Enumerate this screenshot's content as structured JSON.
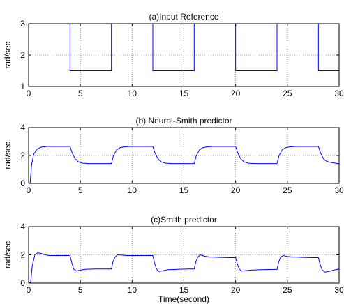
{
  "chart_data": [
    {
      "type": "line",
      "title": "(a)Input Reference",
      "xlabel": "",
      "ylabel": "rad/sec",
      "xlim": [
        0,
        30
      ],
      "ylim": [
        1,
        3
      ],
      "xticks": [
        0,
        5,
        10,
        15,
        20,
        25,
        30
      ],
      "yticks": [
        1,
        2,
        3
      ],
      "grid": true,
      "series": [
        {
          "color": "#0000ff",
          "x": [
            0,
            4,
            4,
            8,
            8,
            12,
            12,
            16,
            16,
            20,
            20,
            24,
            24,
            28,
            28,
            30
          ],
          "y": [
            3,
            3,
            1.5,
            1.5,
            3,
            3,
            1.5,
            1.5,
            3,
            3,
            1.5,
            1.5,
            3,
            3,
            1.5,
            1.5
          ]
        }
      ]
    },
    {
      "type": "line",
      "title": "(b) Neural-Smith predictor",
      "xlabel": "",
      "ylabel": "rad/sec",
      "xlim": [
        0,
        30
      ],
      "ylim": [
        0,
        4
      ],
      "xticks": [
        0,
        5,
        10,
        15,
        20,
        25,
        30
      ],
      "yticks": [
        0,
        2,
        4
      ],
      "grid": true,
      "series": [
        {
          "color": "#0000ff",
          "x": [
            0,
            0.15,
            0.3,
            0.5,
            0.8,
            1.2,
            1.8,
            2.5,
            4.0,
            4.2,
            4.5,
            4.8,
            5.2,
            5.8,
            6.5,
            8.0,
            8.2,
            8.5,
            8.8,
            9.2,
            9.8,
            10.5,
            12.0,
            12.2,
            12.5,
            12.8,
            13.2,
            13.8,
            14.5,
            16.0,
            16.2,
            16.5,
            16.8,
            17.2,
            17.8,
            18.5,
            20.0,
            20.2,
            20.5,
            20.8,
            21.2,
            21.8,
            22.5,
            24.0,
            24.2,
            24.5,
            24.8,
            25.2,
            25.8,
            26.5,
            28.0,
            28.2,
            28.5,
            28.8,
            29.2,
            29.6,
            30.0
          ],
          "y": [
            0,
            0.05,
            1.4,
            2.1,
            2.45,
            2.6,
            2.65,
            2.65,
            2.65,
            2.2,
            1.75,
            1.55,
            1.45,
            1.42,
            1.42,
            1.42,
            2.0,
            2.4,
            2.55,
            2.62,
            2.65,
            2.65,
            2.65,
            2.2,
            1.75,
            1.55,
            1.45,
            1.42,
            1.42,
            1.42,
            2.0,
            2.4,
            2.55,
            2.62,
            2.65,
            2.65,
            2.65,
            2.2,
            1.75,
            1.55,
            1.45,
            1.42,
            1.42,
            1.42,
            2.0,
            2.4,
            2.55,
            2.62,
            2.65,
            2.65,
            2.65,
            2.2,
            1.75,
            1.58,
            1.5,
            1.45,
            1.4
          ]
        }
      ]
    },
    {
      "type": "line",
      "title": "(c)Smith predictor",
      "xlabel": "Time(second)",
      "ylabel": "rad/sec",
      "xlim": [
        0,
        30
      ],
      "ylim": [
        0,
        4
      ],
      "xticks": [
        0,
        5,
        10,
        15,
        20,
        25,
        30
      ],
      "yticks": [
        0,
        2,
        4
      ],
      "grid": true,
      "series": [
        {
          "color": "#0000ff",
          "x": [
            0,
            0.2,
            0.35,
            0.6,
            0.9,
            1.2,
            1.6,
            2.0,
            2.5,
            3.0,
            4.0,
            4.15,
            4.35,
            4.6,
            5.0,
            5.5,
            6.5,
            7.5,
            8.0,
            8.15,
            8.35,
            8.6,
            9.0,
            9.5,
            10.5,
            11.5,
            12.0,
            12.15,
            12.35,
            12.6,
            13.0,
            13.5,
            14.5,
            15.5,
            16.0,
            16.15,
            16.35,
            16.6,
            17.0,
            17.5,
            18.5,
            19.5,
            20.0,
            20.15,
            20.35,
            20.6,
            21.0,
            21.5,
            22.5,
            23.5,
            24.0,
            24.15,
            24.35,
            24.6,
            25.0,
            25.5,
            26.5,
            27.5,
            28.0,
            28.15,
            28.35,
            28.6,
            29.0,
            29.5,
            30.0
          ],
          "y": [
            0,
            0.05,
            1.2,
            2.0,
            2.15,
            2.1,
            2.0,
            1.95,
            1.95,
            1.95,
            1.95,
            1.5,
            1.0,
            0.85,
            0.92,
            0.98,
            1.0,
            1.0,
            1.0,
            1.5,
            1.85,
            2.0,
            1.98,
            1.95,
            1.95,
            1.95,
            1.95,
            1.45,
            1.0,
            0.82,
            0.88,
            0.95,
            0.98,
            1.0,
            1.0,
            1.5,
            1.85,
            2.0,
            1.9,
            1.85,
            1.82,
            1.8,
            1.8,
            1.4,
            1.0,
            0.85,
            0.88,
            0.92,
            0.95,
            0.97,
            0.97,
            1.45,
            1.85,
            1.95,
            1.88,
            1.85,
            1.82,
            1.8,
            1.8,
            1.35,
            0.95,
            0.78,
            0.82,
            0.92,
            1.0
          ]
        }
      ]
    }
  ]
}
